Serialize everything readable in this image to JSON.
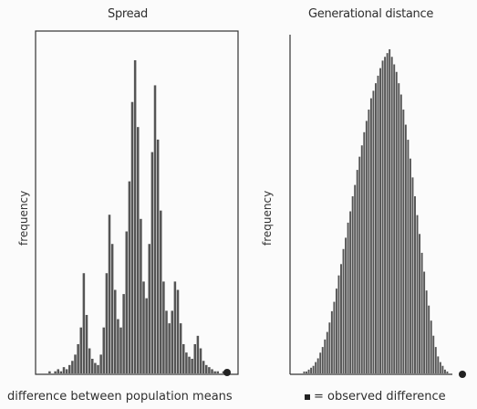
{
  "footer": {
    "left_caption": "difference between population means",
    "right_caption": "= observed difference"
  },
  "chart_data": [
    {
      "type": "bar",
      "title": "Spread",
      "xlabel": "",
      "ylabel": "frequency",
      "grid": false,
      "bar_color": "#555555",
      "values": [
        0,
        1,
        0,
        1,
        2,
        1,
        3,
        2,
        4,
        6,
        9,
        14,
        22,
        48,
        28,
        12,
        7,
        5,
        4,
        9,
        22,
        48,
        76,
        62,
        40,
        26,
        22,
        38,
        68,
        92,
        130,
        150,
        118,
        74,
        44,
        36,
        62,
        106,
        138,
        112,
        78,
        44,
        30,
        24,
        30,
        44,
        40,
        24,
        14,
        10,
        8,
        7,
        14,
        18,
        12,
        6,
        4,
        3,
        2,
        1,
        1,
        0,
        1,
        0
      ]
    },
    {
      "type": "bar",
      "title": "Generational distance",
      "xlabel": "",
      "ylabel": "frequency",
      "grid": false,
      "bar_color": "#555555",
      "values": [
        0,
        1,
        1,
        2,
        3,
        4,
        6,
        8,
        11,
        14,
        18,
        22,
        27,
        33,
        38,
        45,
        52,
        58,
        66,
        72,
        80,
        86,
        94,
        100,
        108,
        115,
        121,
        128,
        134,
        140,
        146,
        150,
        154,
        158,
        162,
        166,
        168,
        170,
        172,
        168,
        164,
        160,
        154,
        148,
        140,
        132,
        124,
        114,
        104,
        94,
        84,
        74,
        64,
        54,
        44,
        36,
        28,
        20,
        14,
        9,
        6,
        4,
        2,
        1
      ]
    }
  ]
}
